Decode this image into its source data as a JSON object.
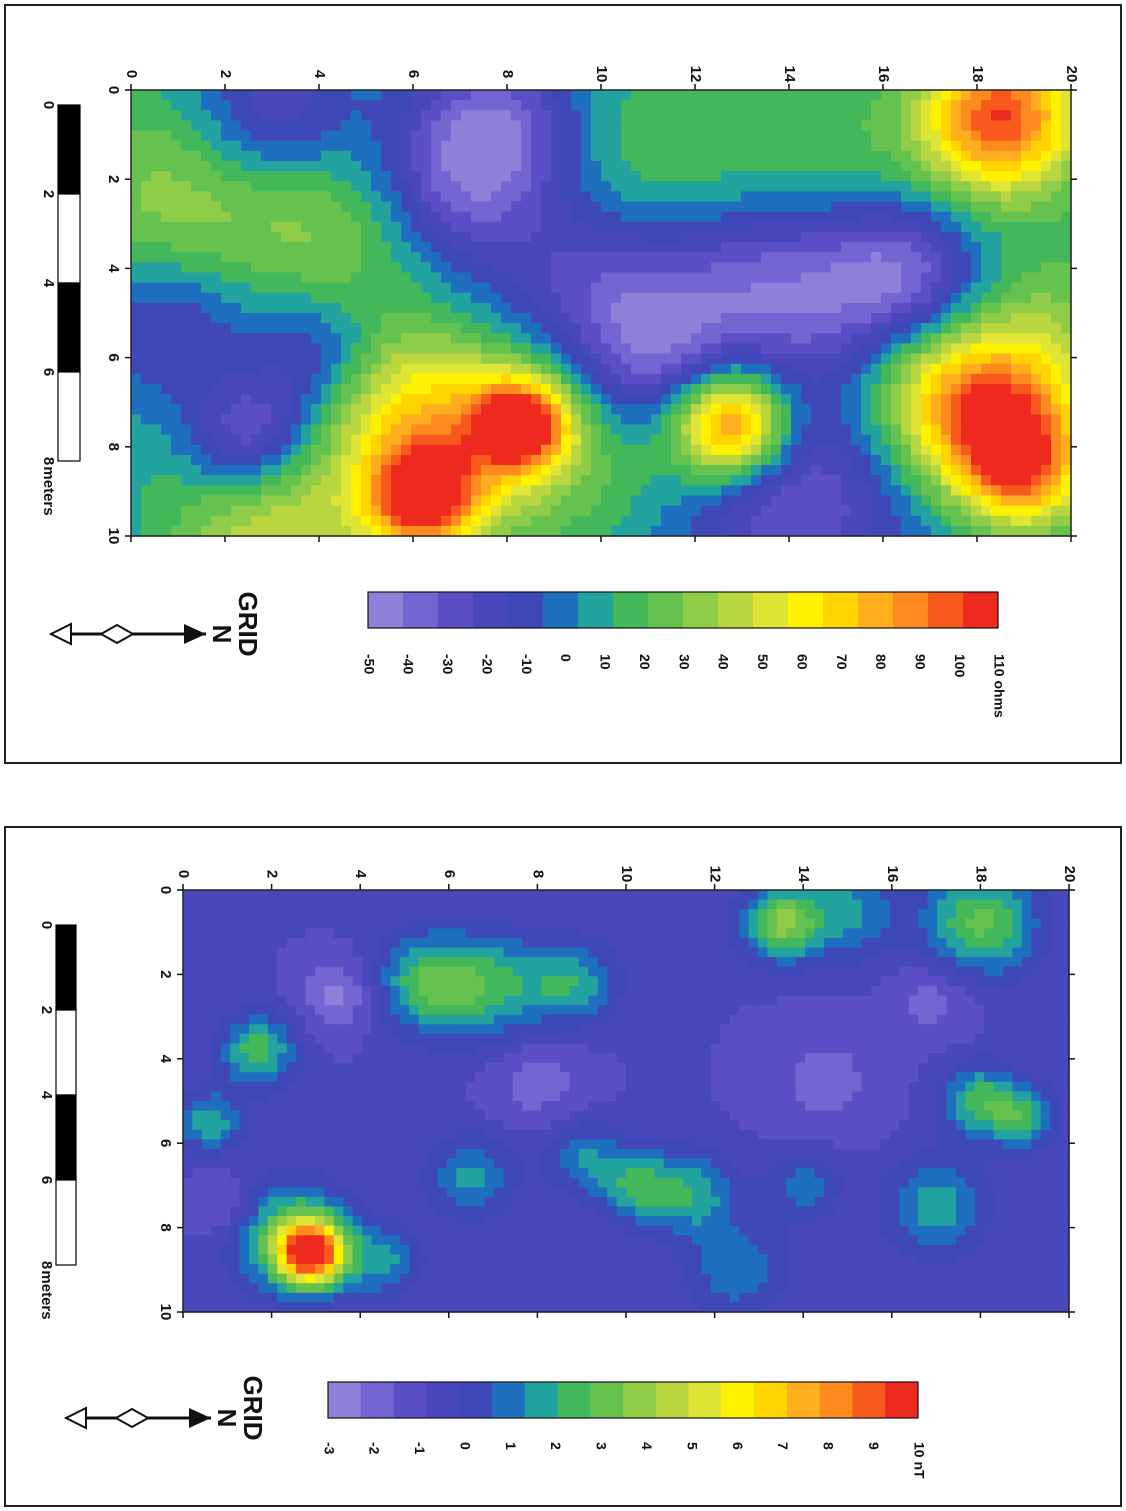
{
  "colors": {
    "ramp": [
      "#8f7fd8",
      "#7466d2",
      "#5a4fc6",
      "#4847bd",
      "#3f48b8",
      "#1f6fbf",
      "#23a39f",
      "#43b85a",
      "#66c24e",
      "#8fcc48",
      "#b9d63e",
      "#dfe535",
      "#fff200",
      "#ffd400",
      "#ffae1e",
      "#ff8a1e",
      "#f85a1e",
      "#ee2a1e"
    ]
  },
  "chart_data": [
    {
      "type": "heatmap",
      "panel": "top",
      "x_ticks": [
        "0",
        "2",
        "4",
        "6",
        "8",
        "10",
        "12",
        "14",
        "16",
        "18",
        "20"
      ],
      "y_ticks": [
        "0",
        "2",
        "4",
        "6",
        "8",
        "10"
      ],
      "xlim": [
        0,
        20
      ],
      "ylim": [
        0,
        10
      ],
      "scale_bar": {
        "ticks": [
          "0",
          "2",
          "4",
          "6",
          "8"
        ],
        "unit_label": "meters"
      },
      "north_arrow": {
        "label_top": "GRID",
        "label_bottom": "N"
      },
      "colorbar": {
        "ticks": [
          "-50",
          "-40",
          "-30",
          "-20",
          "-10",
          "0",
          "10",
          "20",
          "30",
          "40",
          "50",
          "60",
          "70",
          "80",
          "90",
          "100",
          "110 ohms"
        ],
        "range": [
          -50,
          110
        ]
      },
      "blobs": [
        {
          "x": 18.5,
          "y": 0.6,
          "value": 100,
          "spread": 1.2
        },
        {
          "x": 1.0,
          "y": 2.5,
          "value": 35,
          "spread": 1.8
        },
        {
          "x": 4.5,
          "y": 3.0,
          "value": 30,
          "spread": 1.6
        },
        {
          "x": 11.0,
          "y": 2.0,
          "value": 25,
          "spread": 1.8
        },
        {
          "x": 14.5,
          "y": 1.5,
          "value": 20,
          "spread": 1.5
        },
        {
          "x": 17.0,
          "y": 3.0,
          "value": 15,
          "spread": 1.6
        },
        {
          "x": 18.5,
          "y": 7.5,
          "value": 75,
          "spread": 1.2
        },
        {
          "x": 19.0,
          "y": 8.6,
          "value": 65,
          "spread": 0.9
        },
        {
          "x": 17.2,
          "y": 6.7,
          "value": 50,
          "spread": 1.3
        },
        {
          "x": 7.0,
          "y": 7.8,
          "value": 55,
          "spread": 1.5
        },
        {
          "x": 8.3,
          "y": 7.5,
          "value": 100,
          "spread": 0.7
        },
        {
          "x": 6.2,
          "y": 9.2,
          "value": 95,
          "spread": 0.8
        },
        {
          "x": 3.0,
          "y": 9.7,
          "value": 50,
          "spread": 1.5
        },
        {
          "x": 5.5,
          "y": 7.0,
          "value": 35,
          "spread": 1.3
        },
        {
          "x": 1.5,
          "y": 6.5,
          "value": 25,
          "spread": 1.4
        },
        {
          "x": 12.8,
          "y": 7.5,
          "value": 85,
          "spread": 0.8
        },
        {
          "x": 12.3,
          "y": 7.2,
          "value": 40,
          "spread": 1.3
        },
        {
          "x": 10.0,
          "y": 6.0,
          "value": 25,
          "spread": 1.2
        },
        {
          "x": 9.5,
          "y": 8.5,
          "value": 20,
          "spread": 1.5
        },
        {
          "x": 19.5,
          "y": 5.5,
          "value": 30,
          "spread": 1.5
        },
        {
          "x": 2.5,
          "y": 7.8,
          "value": -50,
          "spread": 1.0
        },
        {
          "x": 11.0,
          "y": 6.2,
          "value": -45,
          "spread": 1.2
        },
        {
          "x": 13.5,
          "y": 4.5,
          "value": -40,
          "spread": 1.6
        },
        {
          "x": 16.5,
          "y": 4.2,
          "value": -50,
          "spread": 1.3
        },
        {
          "x": 14.0,
          "y": 9.0,
          "value": -35,
          "spread": 1.8
        },
        {
          "x": 10.0,
          "y": 4.5,
          "value": -35,
          "spread": 1.5
        },
        {
          "x": 7.0,
          "y": 2.0,
          "value": -40,
          "spread": 1.4
        },
        {
          "x": 1.0,
          "y": 5.5,
          "value": -35,
          "spread": 1.3
        },
        {
          "x": 3.0,
          "y": 0.6,
          "value": -30,
          "spread": 1.2
        },
        {
          "x": 8.0,
          "y": 0.6,
          "value": -25,
          "spread": 1.2
        },
        {
          "x": 4.0,
          "y": 6.0,
          "value": -25,
          "spread": 1.0
        }
      ]
    },
    {
      "type": "heatmap",
      "panel": "bottom",
      "x_ticks": [
        "0",
        "2",
        "4",
        "6",
        "8",
        "10",
        "12",
        "14",
        "16",
        "18",
        "20"
      ],
      "y_ticks": [
        "0",
        "2",
        "4",
        "6",
        "8",
        "10"
      ],
      "xlim": [
        0,
        20
      ],
      "ylim": [
        0,
        10
      ],
      "scale_bar": {
        "ticks": [
          "0",
          "2",
          "4",
          "6",
          "8"
        ],
        "unit_label": "meters"
      },
      "north_arrow": {
        "label_top": "GRID",
        "label_bottom": "N"
      },
      "colorbar": {
        "ticks": [
          "-3",
          "-2",
          "-1",
          "0",
          "1",
          "2",
          "3",
          "4",
          "5",
          "6",
          "7",
          "8",
          "9",
          "10 nT"
        ],
        "range": [
          -3,
          10
        ]
      },
      "blobs": [
        {
          "x": 2.9,
          "y": 8.6,
          "value": 9.5,
          "spread": 0.5
        },
        {
          "x": 2.4,
          "y": 8.2,
          "value": 3.0,
          "spread": 0.9
        },
        {
          "x": 13.5,
          "y": 0.8,
          "value": 3.5,
          "spread": 0.6
        },
        {
          "x": 18.0,
          "y": 0.8,
          "value": 3.0,
          "spread": 0.9
        },
        {
          "x": 15.0,
          "y": 0.5,
          "value": 1.5,
          "spread": 0.8
        },
        {
          "x": 5.5,
          "y": 2.2,
          "value": 2.5,
          "spread": 0.8
        },
        {
          "x": 7.0,
          "y": 2.3,
          "value": 2.0,
          "spread": 0.9
        },
        {
          "x": 8.8,
          "y": 2.2,
          "value": 1.8,
          "spread": 0.7
        },
        {
          "x": 1.7,
          "y": 3.8,
          "value": 2.5,
          "spread": 0.6
        },
        {
          "x": 0.6,
          "y": 5.5,
          "value": 2.0,
          "spread": 0.5
        },
        {
          "x": 18.0,
          "y": 5.0,
          "value": 2.5,
          "spread": 0.6
        },
        {
          "x": 19.0,
          "y": 5.4,
          "value": 2.0,
          "spread": 0.5
        },
        {
          "x": 17.0,
          "y": 7.5,
          "value": 1.8,
          "spread": 0.8
        },
        {
          "x": 10.2,
          "y": 7.0,
          "value": 2.0,
          "spread": 0.6
        },
        {
          "x": 11.5,
          "y": 7.2,
          "value": 1.8,
          "spread": 0.7
        },
        {
          "x": 6.5,
          "y": 6.8,
          "value": 1.5,
          "spread": 0.7
        },
        {
          "x": 4.5,
          "y": 8.8,
          "value": 1.5,
          "spread": 0.6
        },
        {
          "x": 9.0,
          "y": 6.3,
          "value": 1.2,
          "spread": 0.6
        },
        {
          "x": 12.5,
          "y": 9.0,
          "value": 1.2,
          "spread": 0.8
        },
        {
          "x": 14.0,
          "y": 7.0,
          "value": 1.0,
          "spread": 0.6
        },
        {
          "x": 3.5,
          "y": 2.5,
          "value": -2.5,
          "spread": 0.6
        },
        {
          "x": 8.0,
          "y": 4.5,
          "value": -2.0,
          "spread": 0.8
        },
        {
          "x": 17.0,
          "y": 2.5,
          "value": -2.0,
          "spread": 0.7
        },
        {
          "x": 14.5,
          "y": 4.5,
          "value": -1.8,
          "spread": 1.0
        },
        {
          "x": 1.0,
          "y": 7.5,
          "value": -2.0,
          "spread": 0.6
        }
      ]
    }
  ]
}
